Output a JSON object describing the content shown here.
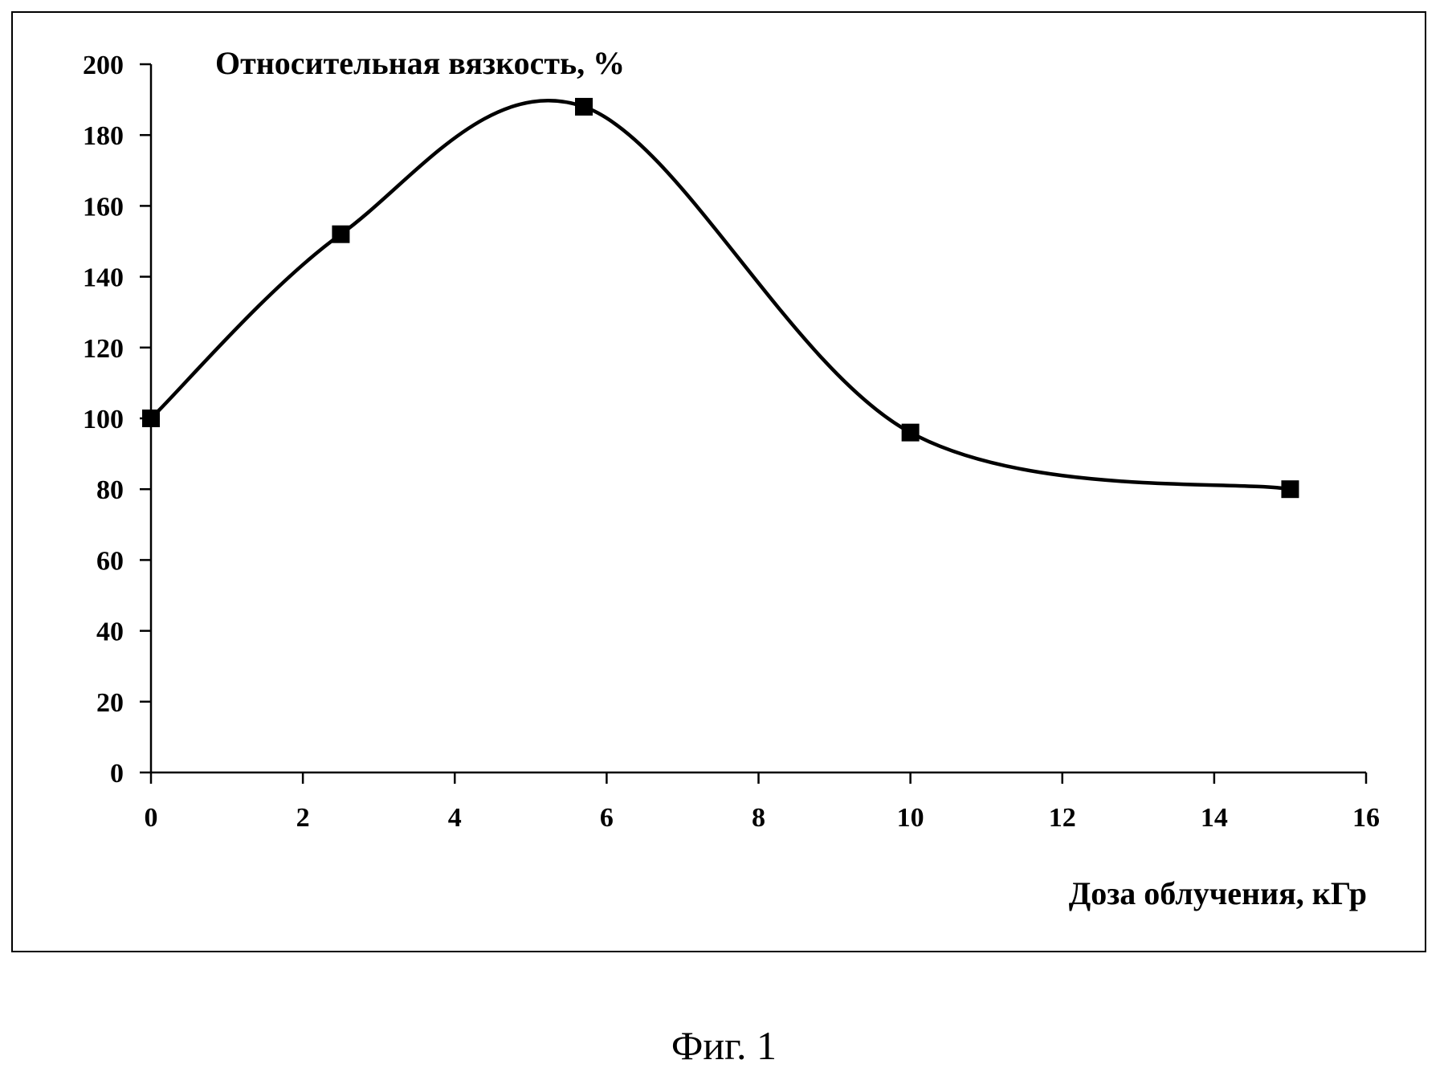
{
  "chart_data": {
    "type": "line",
    "title": "",
    "ylabel": "Относительная вязкость, %",
    "xlabel": "Доза облучения, кГр",
    "x": [
      0,
      2.5,
      5.7,
      10,
      15
    ],
    "series": [
      {
        "values": [
          100,
          152,
          188,
          96,
          80
        ]
      }
    ],
    "xlim": [
      0,
      16
    ],
    "ylim": [
      0,
      200
    ],
    "x_ticks": [
      0,
      2,
      4,
      6,
      8,
      10,
      12,
      14,
      16
    ],
    "y_ticks": [
      0,
      20,
      40,
      60,
      80,
      100,
      120,
      140,
      160,
      180,
      200
    ],
    "x_tick_labels": [
      "0",
      "2",
      "4",
      "6",
      "8",
      "10",
      "12",
      "14",
      "16"
    ],
    "y_tick_labels": [
      "0",
      "20",
      "40",
      "60",
      "80",
      "100",
      "120",
      "140",
      "160",
      "180",
      "200"
    ],
    "marker": "square",
    "smooth": true,
    "grid": false,
    "legend": "none",
    "line_color": "#000000",
    "marker_color": "#000000"
  },
  "caption": "Фиг. 1"
}
